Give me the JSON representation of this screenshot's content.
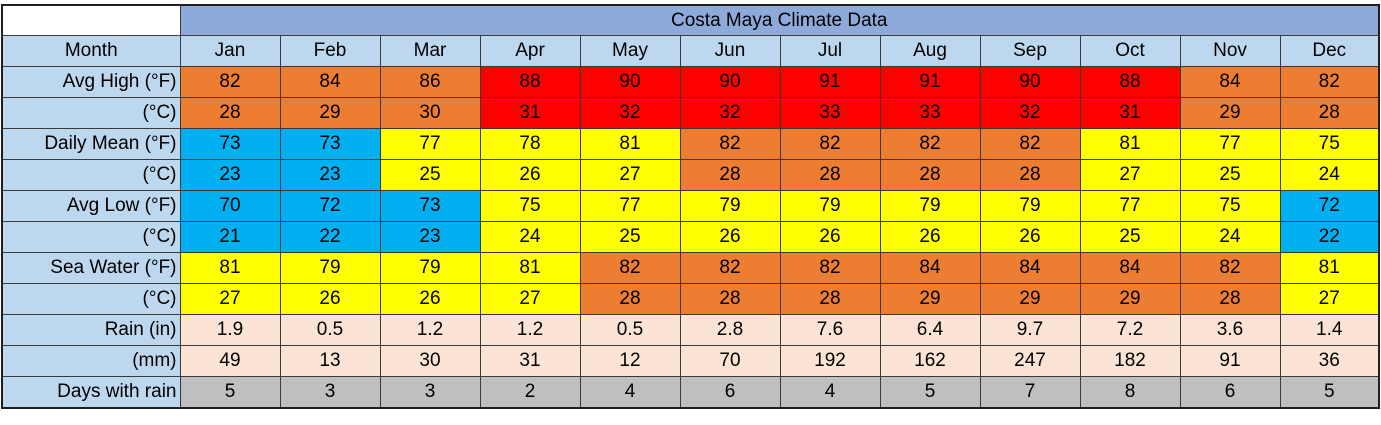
{
  "title": "Costa Maya Climate Data",
  "header_label": "Month",
  "months": [
    "Jan",
    "Feb",
    "Mar",
    "Apr",
    "May",
    "Jun",
    "Jul",
    "Aug",
    "Sep",
    "Oct",
    "Nov",
    "Dec"
  ],
  "colors": {
    "red": "#ff0000",
    "orange": "#ed7d31",
    "yellow": "#ffff00",
    "blue": "#00b0f0",
    "pink": "#fbe4d5",
    "gray": "#bfbfbf",
    "label_bg": "#bdd7ee",
    "title_bg": "#8eaadb"
  },
  "rows": [
    {
      "name": "avg-high-f",
      "label": "Avg High (°F)",
      "values": [
        "82",
        "84",
        "86",
        "88",
        "90",
        "90",
        "91",
        "91",
        "90",
        "88",
        "84",
        "82"
      ],
      "colors": [
        "orange",
        "orange",
        "orange",
        "red",
        "red",
        "red",
        "red",
        "red",
        "red",
        "red",
        "orange",
        "orange"
      ]
    },
    {
      "name": "avg-high-c",
      "label": "(°C)",
      "values": [
        "28",
        "29",
        "30",
        "31",
        "32",
        "32",
        "33",
        "33",
        "32",
        "31",
        "29",
        "28"
      ],
      "colors": [
        "orange",
        "orange",
        "orange",
        "red",
        "red",
        "red",
        "red",
        "red",
        "red",
        "red",
        "orange",
        "orange"
      ]
    },
    {
      "name": "daily-mean-f",
      "label": "Daily Mean (°F)",
      "values": [
        "73",
        "73",
        "77",
        "78",
        "81",
        "82",
        "82",
        "82",
        "82",
        "81",
        "77",
        "75"
      ],
      "colors": [
        "blue",
        "blue",
        "yellow",
        "yellow",
        "yellow",
        "orange",
        "orange",
        "orange",
        "orange",
        "yellow",
        "yellow",
        "yellow"
      ]
    },
    {
      "name": "daily-mean-c",
      "label": "(°C)",
      "values": [
        "23",
        "23",
        "25",
        "26",
        "27",
        "28",
        "28",
        "28",
        "28",
        "27",
        "25",
        "24"
      ],
      "colors": [
        "blue",
        "blue",
        "yellow",
        "yellow",
        "yellow",
        "orange",
        "orange",
        "orange",
        "orange",
        "yellow",
        "yellow",
        "yellow"
      ]
    },
    {
      "name": "avg-low-f",
      "label": "Avg Low (°F)",
      "values": [
        "70",
        "72",
        "73",
        "75",
        "77",
        "79",
        "79",
        "79",
        "79",
        "77",
        "75",
        "72"
      ],
      "colors": [
        "blue",
        "blue",
        "blue",
        "yellow",
        "yellow",
        "yellow",
        "yellow",
        "yellow",
        "yellow",
        "yellow",
        "yellow",
        "blue"
      ]
    },
    {
      "name": "avg-low-c",
      "label": "(°C)",
      "values": [
        "21",
        "22",
        "23",
        "24",
        "25",
        "26",
        "26",
        "26",
        "26",
        "25",
        "24",
        "22"
      ],
      "colors": [
        "blue",
        "blue",
        "blue",
        "yellow",
        "yellow",
        "yellow",
        "yellow",
        "yellow",
        "yellow",
        "yellow",
        "yellow",
        "blue"
      ]
    },
    {
      "name": "sea-water-f",
      "label": "Sea Water (°F)",
      "values": [
        "81",
        "79",
        "79",
        "81",
        "82",
        "82",
        "82",
        "84",
        "84",
        "84",
        "82",
        "81"
      ],
      "colors": [
        "yellow",
        "yellow",
        "yellow",
        "yellow",
        "orange",
        "orange",
        "orange",
        "orange",
        "orange",
        "orange",
        "orange",
        "yellow"
      ]
    },
    {
      "name": "sea-water-c",
      "label": "(°C)",
      "values": [
        "27",
        "26",
        "26",
        "27",
        "28",
        "28",
        "28",
        "29",
        "29",
        "29",
        "28",
        "27"
      ],
      "colors": [
        "yellow",
        "yellow",
        "yellow",
        "yellow",
        "orange",
        "orange",
        "orange",
        "orange",
        "orange",
        "orange",
        "orange",
        "yellow"
      ]
    },
    {
      "name": "rain-in",
      "label": "Rain (in)",
      "values": [
        "1.9",
        "0.5",
        "1.2",
        "1.2",
        "0.5",
        "2.8",
        "7.6",
        "6.4",
        "9.7",
        "7.2",
        "3.6",
        "1.4"
      ],
      "colors": [
        "pink",
        "pink",
        "pink",
        "pink",
        "pink",
        "pink",
        "pink",
        "pink",
        "pink",
        "pink",
        "pink",
        "pink"
      ]
    },
    {
      "name": "rain-mm",
      "label": "(mm)",
      "values": [
        "49",
        "13",
        "30",
        "31",
        "12",
        "70",
        "192",
        "162",
        "247",
        "182",
        "91",
        "36"
      ],
      "colors": [
        "pink",
        "pink",
        "pink",
        "pink",
        "pink",
        "pink",
        "pink",
        "pink",
        "pink",
        "pink",
        "pink",
        "pink"
      ]
    },
    {
      "name": "days-with-rain",
      "label": "Days with rain",
      "values": [
        "5",
        "3",
        "3",
        "2",
        "4",
        "6",
        "4",
        "5",
        "7",
        "8",
        "6",
        "5"
      ],
      "colors": [
        "gray",
        "gray",
        "gray",
        "gray",
        "gray",
        "gray",
        "gray",
        "gray",
        "gray",
        "gray",
        "gray",
        "gray"
      ]
    }
  ]
}
